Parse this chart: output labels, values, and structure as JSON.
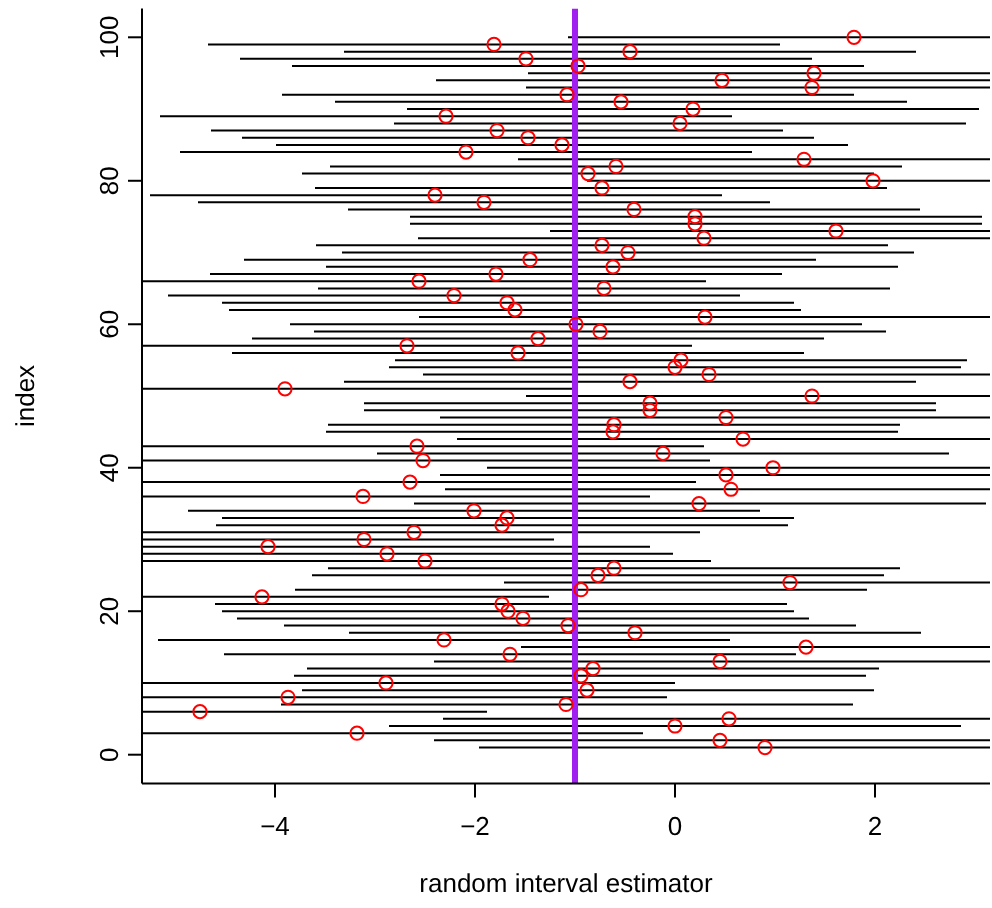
{
  "chart_data": {
    "type": "scatter",
    "xlabel": "random interval estimator",
    "ylabel": "index",
    "xlim": [
      -5.33,
      3.15
    ],
    "ylim": [
      -4,
      104
    ],
    "xticks": [
      -4,
      -2,
      0,
      2
    ],
    "yticks": [
      0,
      20,
      40,
      60,
      80,
      100
    ],
    "marker": "circle",
    "grid": false,
    "ref_lines": [
      {
        "axis": "x",
        "value": -1,
        "color": "#a020f0"
      }
    ],
    "series": [
      {
        "color": "#ff0000",
        "x": [
          0.9,
          0.45,
          -3.18,
          0.0,
          0.54,
          -4.75,
          -1.09,
          -3.87,
          -0.88,
          -2.89,
          -0.94,
          -0.82,
          0.45,
          -1.65,
          1.31,
          -2.31,
          -0.4,
          -1.07,
          -1.52,
          -1.67,
          -1.73,
          -4.13,
          -0.94,
          1.15,
          -0.77,
          -0.61,
          -2.5,
          -2.88,
          -4.07,
          -3.11,
          -2.61,
          -1.73,
          -1.68,
          -2.01,
          0.24,
          -3.12,
          0.56,
          -2.65,
          0.51,
          0.98,
          -2.52,
          -0.12,
          -2.58,
          0.68,
          -0.62,
          -0.61,
          0.51,
          -0.25,
          -0.25,
          1.37,
          -3.9,
          -0.45,
          0.34,
          0.0,
          0.06,
          -1.57,
          -2.68,
          -1.37,
          -0.75,
          -0.99,
          0.3,
          -1.6,
          -1.68,
          -2.21,
          -0.71,
          -2.56,
          -1.79,
          -0.62,
          -1.45,
          -0.47,
          -0.73,
          0.29,
          1.61,
          0.2,
          0.2,
          -0.41,
          -1.91,
          -2.4,
          -0.73,
          1.98,
          -0.87,
          -0.59,
          1.29,
          -2.09,
          -1.13,
          -1.47,
          -1.78,
          0.05,
          -2.29,
          0.18,
          -0.54,
          -1.08,
          1.37,
          0.47,
          1.39,
          -0.97,
          -1.49,
          -0.45,
          -1.81,
          1.79
        ],
        "values": [
          1,
          2,
          3,
          4,
          5,
          6,
          7,
          8,
          9,
          10,
          11,
          12,
          13,
          14,
          15,
          16,
          17,
          18,
          19,
          20,
          21,
          22,
          23,
          24,
          25,
          26,
          27,
          28,
          29,
          30,
          31,
          32,
          33,
          34,
          35,
          36,
          37,
          38,
          39,
          40,
          41,
          42,
          43,
          44,
          45,
          46,
          47,
          48,
          49,
          50,
          51,
          52,
          53,
          54,
          55,
          56,
          57,
          58,
          59,
          60,
          61,
          62,
          63,
          64,
          65,
          66,
          67,
          68,
          69,
          70,
          71,
          72,
          73,
          74,
          75,
          76,
          77,
          78,
          79,
          80,
          81,
          82,
          83,
          84,
          85,
          86,
          87,
          88,
          89,
          90,
          91,
          92,
          93,
          94,
          95,
          96,
          97,
          98,
          99,
          100
        ],
        "xerrors": [
          [
            -1.96,
            3.15
          ],
          [
            -2.41,
            3.15
          ],
          [
            -5.33,
            -0.32
          ],
          [
            -2.86,
            2.86
          ],
          [
            -2.32,
            3.15
          ],
          [
            -5.33,
            -1.88
          ],
          [
            -3.94,
            1.78
          ],
          [
            -5.33,
            -0.08
          ],
          [
            -3.73,
            1.99
          ],
          [
            -5.33,
            0.0
          ],
          [
            -3.81,
            1.91
          ],
          [
            -3.68,
            2.04
          ],
          [
            -2.41,
            3.15
          ],
          [
            -4.51,
            1.21
          ],
          [
            -1.54,
            3.15
          ],
          [
            -5.17,
            0.55
          ],
          [
            -3.26,
            2.46
          ],
          [
            -3.91,
            1.81
          ],
          [
            -4.38,
            1.34
          ],
          [
            -4.53,
            1.19
          ],
          [
            -4.6,
            1.12
          ],
          [
            -5.33,
            -1.26
          ],
          [
            -3.8,
            1.92
          ],
          [
            -1.71,
            3.15
          ],
          [
            -3.63,
            2.09
          ],
          [
            -3.47,
            2.25
          ],
          [
            -5.33,
            0.36
          ],
          [
            -5.33,
            -0.02
          ],
          [
            -5.33,
            -0.25
          ],
          [
            -5.33,
            -1.21
          ],
          [
            -5.33,
            0.25
          ],
          [
            -4.59,
            1.13
          ],
          [
            -4.53,
            1.19
          ],
          [
            -4.87,
            0.85
          ],
          [
            -2.61,
            3.11
          ],
          [
            -5.33,
            -0.25
          ],
          [
            -2.3,
            3.15
          ],
          [
            -5.33,
            0.21
          ],
          [
            -2.35,
            3.15
          ],
          [
            -1.88,
            3.15
          ],
          [
            -5.33,
            0.35
          ],
          [
            -2.98,
            2.74
          ],
          [
            -5.33,
            0.29
          ],
          [
            -2.18,
            3.15
          ],
          [
            -3.49,
            2.23
          ],
          [
            -3.47,
            2.25
          ],
          [
            -2.35,
            3.15
          ],
          [
            -3.11,
            2.61
          ],
          [
            -3.11,
            2.61
          ],
          [
            -1.49,
            3.15
          ],
          [
            -5.33,
            -1.03
          ],
          [
            -3.31,
            2.41
          ],
          [
            -2.52,
            3.15
          ],
          [
            -2.86,
            2.86
          ],
          [
            -2.8,
            2.92
          ],
          [
            -4.43,
            1.29
          ],
          [
            -5.33,
            0.17
          ],
          [
            -4.23,
            1.49
          ],
          [
            -3.61,
            2.11
          ],
          [
            -3.85,
            1.87
          ],
          [
            -2.56,
            3.15
          ],
          [
            -4.46,
            1.26
          ],
          [
            -4.53,
            1.19
          ],
          [
            -5.07,
            0.65
          ],
          [
            -3.57,
            2.15
          ],
          [
            -5.33,
            0.31
          ],
          [
            -4.65,
            1.07
          ],
          [
            -3.49,
            2.23
          ],
          [
            -4.31,
            1.41
          ],
          [
            -3.33,
            2.39
          ],
          [
            -3.59,
            2.13
          ],
          [
            -2.57,
            3.15
          ],
          [
            -1.25,
            3.15
          ],
          [
            -2.65,
            3.07
          ],
          [
            -2.65,
            3.07
          ],
          [
            -3.27,
            2.45
          ],
          [
            -4.77,
            0.95
          ],
          [
            -5.25,
            0.47
          ],
          [
            -3.6,
            2.12
          ],
          [
            -0.88,
            3.15
          ],
          [
            -3.73,
            1.99
          ],
          [
            -3.45,
            2.27
          ],
          [
            -1.57,
            3.15
          ],
          [
            -4.95,
            0.77
          ],
          [
            -3.99,
            1.73
          ],
          [
            -4.33,
            1.39
          ],
          [
            -4.64,
            1.08
          ],
          [
            -2.81,
            2.91
          ],
          [
            -5.15,
            0.57
          ],
          [
            -2.68,
            3.04
          ],
          [
            -3.4,
            2.32
          ],
          [
            -3.93,
            1.79
          ],
          [
            -1.49,
            3.15
          ],
          [
            -2.39,
            3.15
          ],
          [
            -1.47,
            3.15
          ],
          [
            -3.83,
            1.89
          ],
          [
            -4.35,
            1.37
          ],
          [
            -3.31,
            2.41
          ],
          [
            -4.67,
            1.05
          ],
          [
            -1.07,
            3.15
          ]
        ]
      }
    ]
  }
}
